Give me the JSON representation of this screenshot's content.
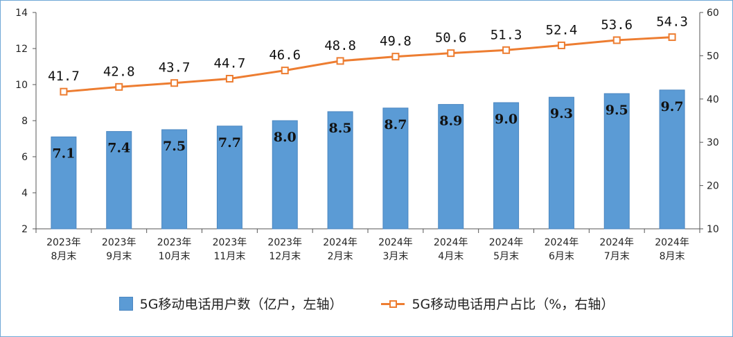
{
  "chart_data": {
    "type": "bar+line",
    "categories": [
      [
        "2023年",
        "8月末"
      ],
      [
        "2023年",
        "9月末"
      ],
      [
        "2023年",
        "10月末"
      ],
      [
        "2023年",
        "11月末"
      ],
      [
        "2023年",
        "12月末"
      ],
      [
        "2024年",
        "2月末"
      ],
      [
        "2024年",
        "3月末"
      ],
      [
        "2024年",
        "4月末"
      ],
      [
        "2024年",
        "5月末"
      ],
      [
        "2024年",
        "6月末"
      ],
      [
        "2024年",
        "7月末"
      ],
      [
        "2024年",
        "8月末"
      ]
    ],
    "series": [
      {
        "name": "5G移动电话用户数（亿户，左轴）",
        "kind": "bar",
        "axis": "left",
        "color": "#5b9bd5",
        "values": [
          7.1,
          7.4,
          7.5,
          7.7,
          8.0,
          8.5,
          8.7,
          8.9,
          9.0,
          9.3,
          9.5,
          9.7
        ],
        "labels": [
          "7.1",
          "7.4",
          "7.5",
          "7.7",
          "8.0",
          "8.5",
          "8.7",
          "8.9",
          "9.0",
          "9.3",
          "9.5",
          "9.7"
        ]
      },
      {
        "name": "5G移动电话用户占比（%，右轴）",
        "kind": "line",
        "axis": "right",
        "color": "#ed7d31",
        "values": [
          41.7,
          42.8,
          43.7,
          44.7,
          46.6,
          48.8,
          49.8,
          50.6,
          51.3,
          52.4,
          53.6,
          54.3
        ],
        "labels": [
          "41.7",
          "42.8",
          "43.7",
          "44.7",
          "46.6",
          "48.8",
          "49.8",
          "50.6",
          "51.3",
          "52.4",
          "53.6",
          "54.3"
        ]
      }
    ],
    "y_left": {
      "range": [
        2,
        14
      ],
      "ticks": [
        "2",
        "4",
        "6",
        "8",
        "10",
        "12",
        "14"
      ]
    },
    "y_right": {
      "range": [
        10,
        60
      ],
      "ticks": [
        "10",
        "20",
        "30",
        "40",
        "50",
        "60"
      ]
    },
    "legend_position": "bottom",
    "grid": false
  },
  "legend": {
    "bar_label": "5G移动电话用户数（亿户，左轴）",
    "line_label": "5G移动电话用户占比（%，右轴）"
  }
}
